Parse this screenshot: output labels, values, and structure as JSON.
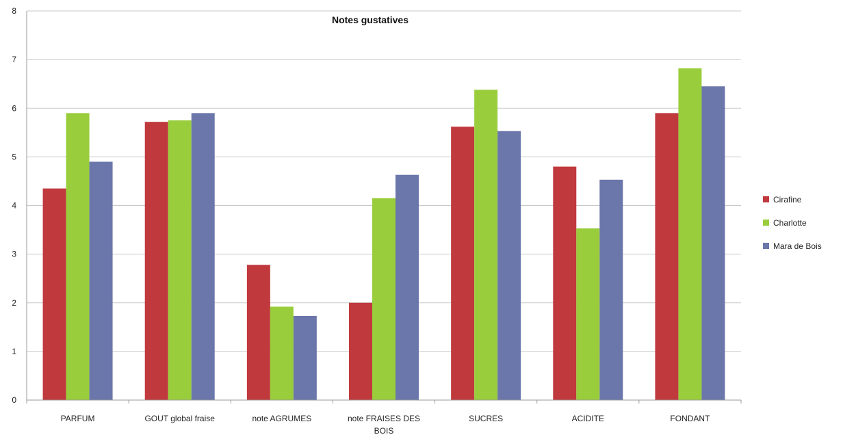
{
  "chart_data": {
    "type": "bar",
    "title": "Notes gustatives",
    "xlabel": "",
    "ylabel": "",
    "ylim": [
      0,
      8
    ],
    "yticks": [
      0,
      1,
      2,
      3,
      4,
      5,
      6,
      7,
      8
    ],
    "grid": true,
    "legend_position": "right",
    "categories": [
      [
        "PARFUM"
      ],
      [
        "GOUT global fraise"
      ],
      [
        "note AGRUMES"
      ],
      [
        "note FRAISES DES",
        "BOIS"
      ],
      [
        "SUCRES"
      ],
      [
        "ACIDITE"
      ],
      [
        "FONDANT"
      ]
    ],
    "series": [
      {
        "name": "Cirafine",
        "color": "#c0393d",
        "values": [
          4.35,
          5.72,
          2.78,
          2.0,
          5.62,
          4.8,
          5.9
        ]
      },
      {
        "name": "Charlotte",
        "color": "#9acd3c",
        "values": [
          5.9,
          5.75,
          1.92,
          4.15,
          6.38,
          3.53,
          6.82
        ]
      },
      {
        "name": "Mara de Bois",
        "color": "#6b76aa",
        "values": [
          4.9,
          5.9,
          1.73,
          4.63,
          5.53,
          4.53,
          6.45
        ]
      }
    ]
  }
}
